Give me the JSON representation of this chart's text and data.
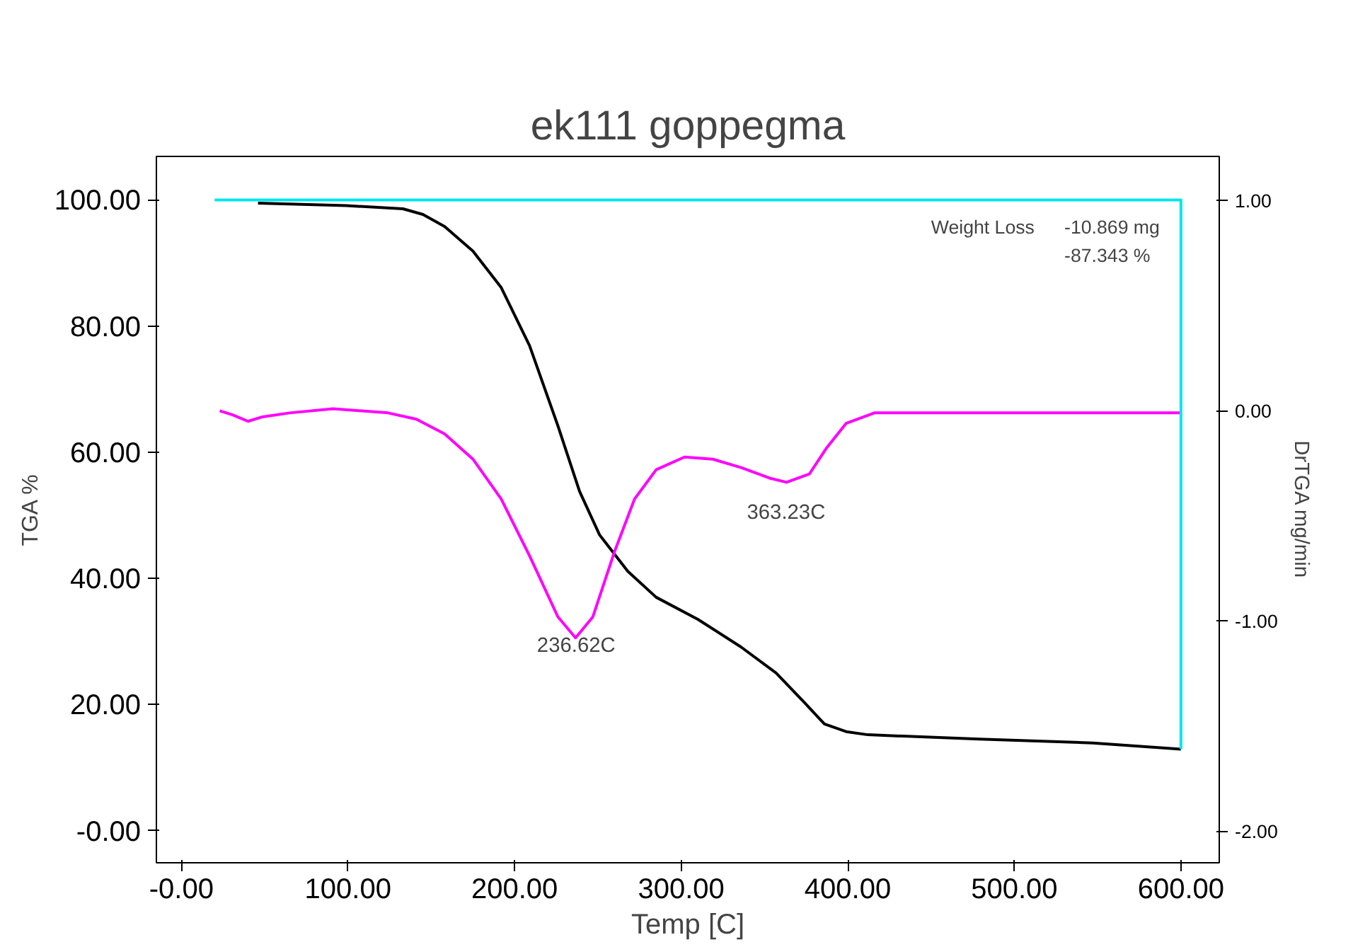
{
  "chart_data": {
    "type": "line",
    "title": "ek111 goppegma",
    "xlabel": "Temp [C]",
    "ylabel": "TGA %",
    "y2label": "DrTGA mg/min",
    "xlim": [
      -15,
      623
    ],
    "ylim": [
      -5.1,
      106.9
    ],
    "y2lim": [
      -2.15,
      1.21
    ],
    "xticks": [
      {
        "value": 0,
        "label": "-0.00"
      },
      {
        "value": 100,
        "label": "100.00"
      },
      {
        "value": 200,
        "label": "200.00"
      },
      {
        "value": 300,
        "label": "300.00"
      },
      {
        "value": 400,
        "label": "400.00"
      },
      {
        "value": 500,
        "label": "500.00"
      },
      {
        "value": 600,
        "label": "600.00"
      }
    ],
    "yticks": [
      {
        "value": 0,
        "label": "-0.00"
      },
      {
        "value": 20,
        "label": "20.00"
      },
      {
        "value": 40,
        "label": "40.00"
      },
      {
        "value": 60,
        "label": "60.00"
      },
      {
        "value": 80,
        "label": "80.00"
      },
      {
        "value": 100,
        "label": "100.00"
      }
    ],
    "y2ticks": [
      {
        "value": -2,
        "label": "-2.00"
      },
      {
        "value": -1,
        "label": "-1.00"
      },
      {
        "value": 0,
        "label": "0.00"
      },
      {
        "value": 1,
        "label": "1.00"
      }
    ],
    "grid": false,
    "marker": "none",
    "line_style": "solid",
    "series": [
      {
        "color": "#000000",
        "x": [
          46,
          99,
          133,
          145,
          158,
          175,
          192,
          209,
          226,
          239,
          251,
          268,
          285,
          310,
          336,
          357,
          374,
          386,
          399,
          412,
          479,
          547,
          600
        ],
        "values": [
          99.5,
          99.1,
          98.6,
          97.7,
          95.8,
          91.9,
          86.1,
          76.9,
          64.2,
          53.8,
          46.9,
          41.1,
          37,
          33.5,
          29.1,
          25,
          20.3,
          16.9,
          15.7,
          15.2,
          14.5,
          13.9,
          12.9
        ]
      },
      {
        "color": "#ff00ff",
        "axis": "y2",
        "x": [
          23,
          31,
          40,
          48,
          65,
          91,
          124,
          141,
          158,
          175,
          192,
          209,
          226,
          236.62,
          247,
          260,
          272,
          285,
          302,
          319,
          336,
          353,
          363.23,
          377,
          387,
          399,
          416,
          479,
          600
        ],
        "values": [
          0,
          -0.02,
          -0.05,
          -0.03,
          -0.01,
          0.01,
          -0.01,
          -0.04,
          -0.11,
          -0.23,
          -0.42,
          -0.69,
          -0.98,
          -1.08,
          -0.98,
          -0.67,
          -0.42,
          -0.28,
          -0.22,
          -0.23,
          -0.27,
          -0.32,
          -0.34,
          -0.3,
          -0.18,
          -0.06,
          -0.01,
          -0.01,
          -0.01
        ]
      },
      {
        "color": "#00e5ee",
        "x": [
          20,
          600,
          600
        ],
        "values": [
          100,
          100,
          12.9
        ]
      }
    ],
    "annotations": [
      "236.62C",
      "363.23C",
      "Weight Loss",
      "-10.869 mg",
      "-87.343 %"
    ]
  }
}
